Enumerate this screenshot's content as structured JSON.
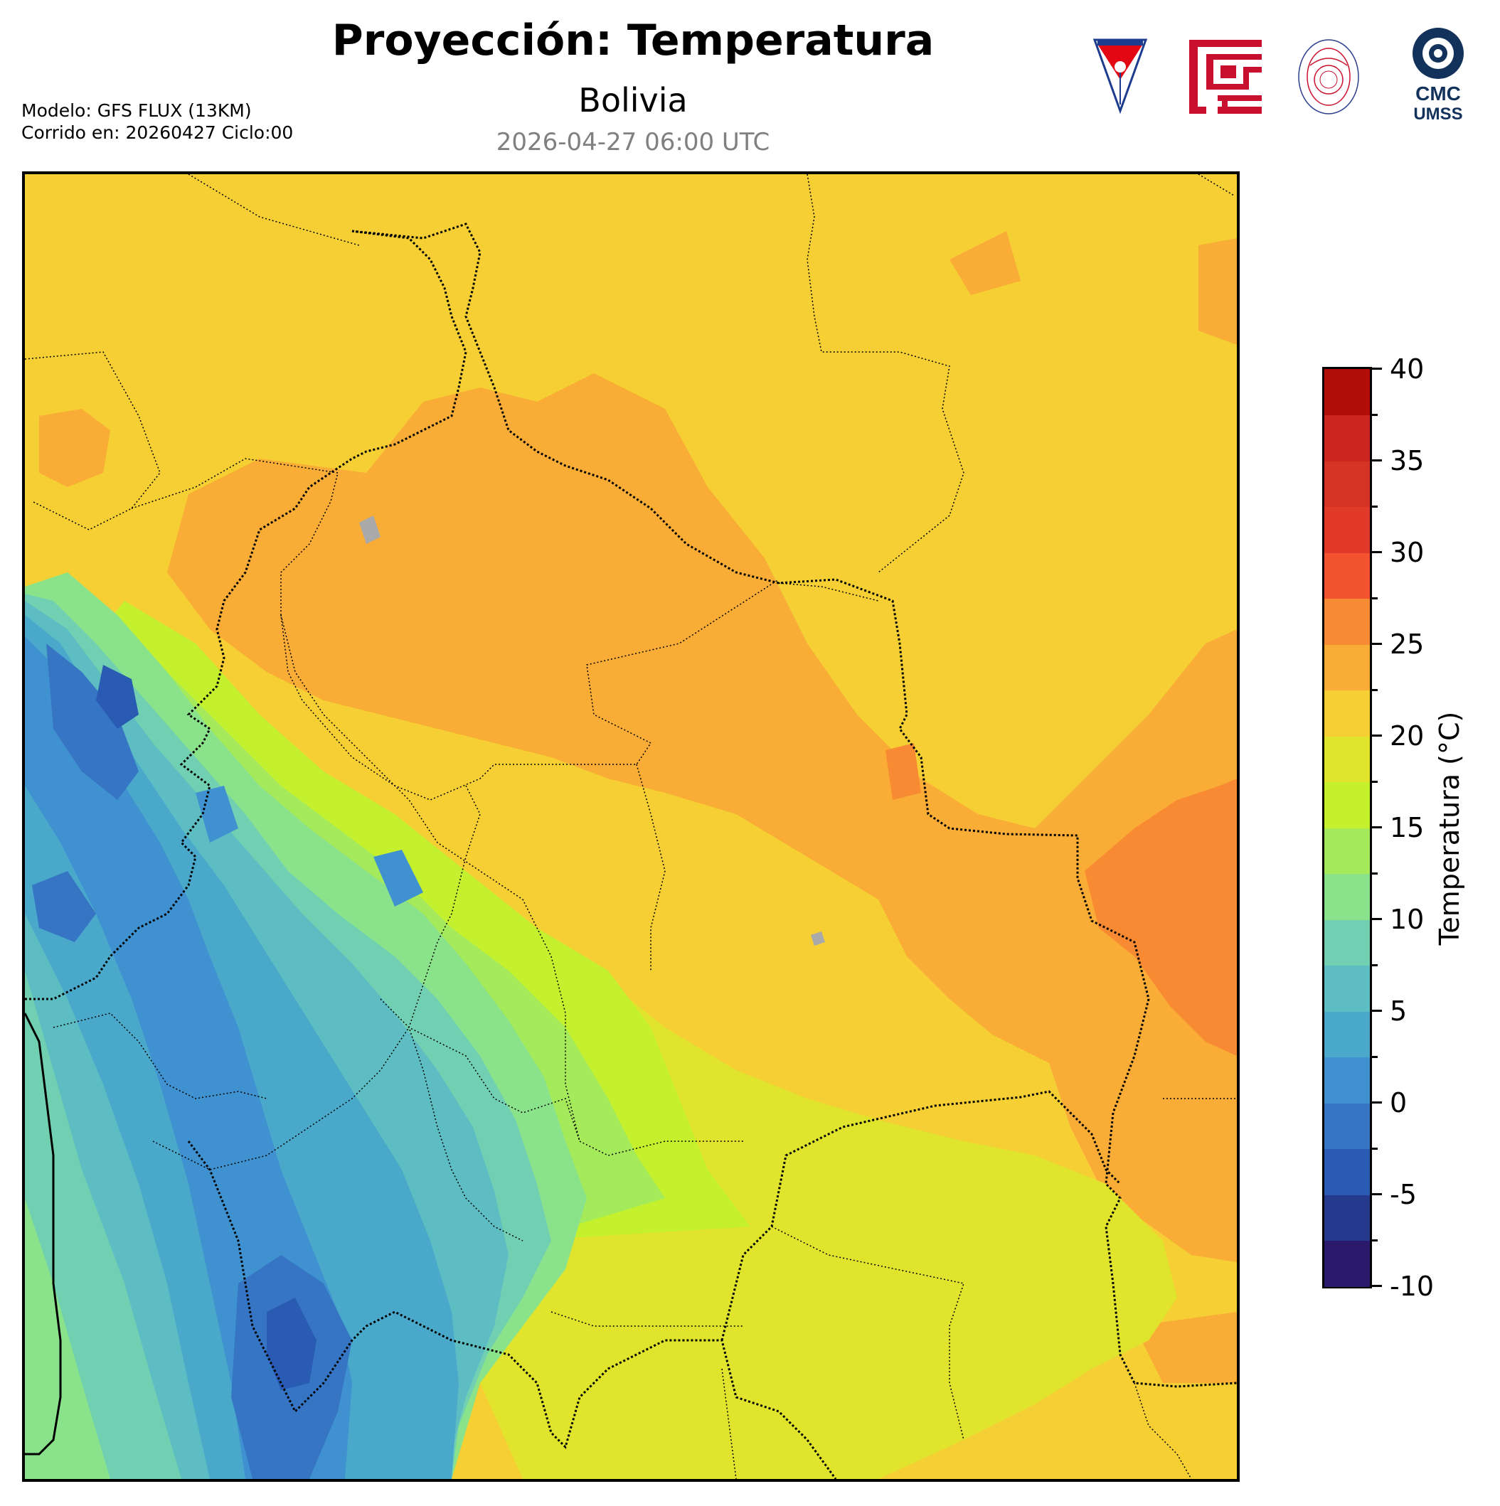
{
  "header": {
    "title": "Proyección: Temperatura",
    "subtitle": "Bolivia",
    "datetime": "2026-04-27 06:00 UTC",
    "model_line": "Modelo: GFS FLUX (13KM)",
    "run_line": "Corrido en: 20260427 Ciclo:00"
  },
  "logos": [
    {
      "name": "UMSS",
      "icon": "umss-shield-icon",
      "colors": [
        "#e30613",
        "#1d3c8f"
      ]
    },
    {
      "name": "facultad",
      "icon": "red-meander-logo-icon",
      "colors": [
        "#c8102e"
      ]
    },
    {
      "name": "DEPARTAMENTO DE FISICA",
      "icon": "departamento-fisica-seal-icon",
      "colors": [
        "#c8102e",
        "#2e3f8f"
      ]
    },
    {
      "name": "CMC UMSS",
      "icon": "cmc-logo-icon",
      "line1": "CMC",
      "line2": "UMSS",
      "colors": [
        "#13325b"
      ]
    }
  ],
  "colorbar": {
    "label": "Temperatura (°C)",
    "min": -10,
    "max": 40,
    "step": 2.5,
    "major_ticks": [
      "40",
      "35",
      "30",
      "25",
      "20",
      "15",
      "10",
      "5",
      "0",
      "-5",
      "-10"
    ],
    "colors": [
      "#2b1a6b",
      "#263a8d",
      "#2a5bb2",
      "#3575c4",
      "#3f91cf",
      "#4aa9cb",
      "#5dbdc2",
      "#72d0b2",
      "#8ae38a",
      "#a4ea5a",
      "#c5f02d",
      "#e0e42c",
      "#f5cf34",
      "#f9ac36",
      "#f98a34",
      "#f4532f",
      "#e13a2b",
      "#d53424",
      "#cc241f",
      "#b30d0a"
    ]
  },
  "map": {
    "region": "Bolivia",
    "variable": "Temperatura",
    "units": "°C"
  }
}
